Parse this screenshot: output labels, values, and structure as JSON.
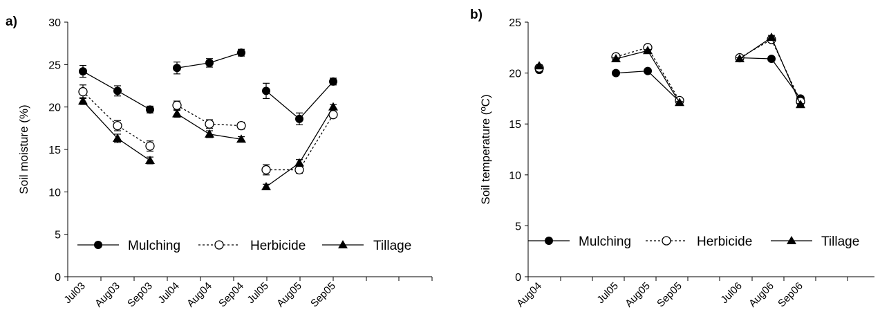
{
  "chart_data": [
    {
      "type": "line",
      "panel_label": "a)",
      "title": "",
      "xlabel": "",
      "ylabel": "Soil moisture (%)",
      "ylim": [
        0,
        30
      ],
      "y_ticks": [
        0,
        5,
        10,
        15,
        20,
        25,
        30
      ],
      "grid": false,
      "legend_position": "bottom",
      "x": [
        "Jul03",
        "Aug03",
        "Sep03",
        "Jul04",
        "Aug04",
        "Sep04",
        "Jul05",
        "Aug05",
        "Sep05"
      ],
      "series": [
        {
          "name": "Mulching",
          "marker": "filled-circle",
          "dash": "solid",
          "segments": [
            [
              0,
              1,
              2
            ],
            [
              3,
              4,
              5
            ],
            [
              6,
              7,
              8
            ]
          ],
          "values": [
            24.2,
            21.9,
            19.7,
            24.6,
            25.2,
            26.4,
            21.9,
            18.6,
            23.0
          ],
          "errors": [
            0.7,
            0.6,
            0.4,
            0.7,
            0.5,
            0.4,
            0.9,
            0.7,
            0.4
          ]
        },
        {
          "name": "Herbicide",
          "marker": "open-circle",
          "dash": "dotted",
          "segments": [
            [
              0,
              1,
              2
            ],
            [
              3,
              4,
              5
            ],
            [
              6,
              7,
              8
            ]
          ],
          "values": [
            21.8,
            17.8,
            15.4,
            20.2,
            18.0,
            17.8,
            12.6,
            12.6,
            19.1
          ],
          "errors": [
            0.8,
            0.6,
            0.6,
            0.5,
            0.5,
            0.4,
            0.6,
            0.4,
            0.3
          ]
        },
        {
          "name": "Tillage",
          "marker": "filled-triangle",
          "dash": "solid",
          "segments": [
            [
              0,
              1,
              2
            ],
            [
              3,
              4,
              5
            ],
            [
              6,
              7,
              8
            ]
          ],
          "values": [
            20.7,
            16.3,
            13.7,
            19.2,
            16.8,
            16.2,
            10.6,
            13.4,
            20.0
          ],
          "errors": [
            0.4,
            0.5,
            0.4,
            0.4,
            0.4,
            0.3,
            0.3,
            0.4,
            0.3
          ]
        }
      ]
    },
    {
      "type": "line",
      "panel_label": "b)",
      "title": "",
      "xlabel": "",
      "ylabel": "Soil temperature (ºC)",
      "ylim": [
        0,
        25
      ],
      "y_ticks": [
        0,
        5,
        10,
        15,
        20,
        25
      ],
      "grid": false,
      "legend_position": "bottom",
      "x": [
        "Aug04",
        "Jul05",
        "Aug05",
        "Sep05",
        "Jul06",
        "Aug06",
        "Sep06"
      ],
      "series": [
        {
          "name": "Mulching",
          "marker": "filled-circle",
          "dash": "solid",
          "segments": [
            [
              0
            ],
            [
              1,
              2,
              3
            ],
            [
              4,
              5,
              6
            ]
          ],
          "values": [
            20.3,
            20.0,
            20.2,
            17.2,
            21.5,
            21.4,
            17.5
          ],
          "errors": [
            0.1,
            0.1,
            0.1,
            0.1,
            0.1,
            0.1,
            0.1
          ]
        },
        {
          "name": "Herbicide",
          "marker": "open-circle",
          "dash": "dotted",
          "segments": [
            [
              0
            ],
            [
              1,
              2,
              3
            ],
            [
              4,
              5,
              6
            ]
          ],
          "values": [
            20.5,
            21.6,
            22.5,
            17.3,
            21.5,
            23.3,
            17.2
          ],
          "errors": [
            0.1,
            0.1,
            0.1,
            0.1,
            0.1,
            0.2,
            0.1
          ]
        },
        {
          "name": "Tillage",
          "marker": "filled-triangle",
          "dash": "solid",
          "segments": [
            [
              0
            ],
            [
              1,
              2,
              3
            ],
            [
              4,
              5,
              6
            ]
          ],
          "values": [
            20.7,
            21.4,
            22.2,
            17.1,
            21.4,
            23.5,
            16.9
          ],
          "errors": [
            0.1,
            0.1,
            0.1,
            0.1,
            0.1,
            0.2,
            0.1
          ]
        }
      ]
    }
  ]
}
